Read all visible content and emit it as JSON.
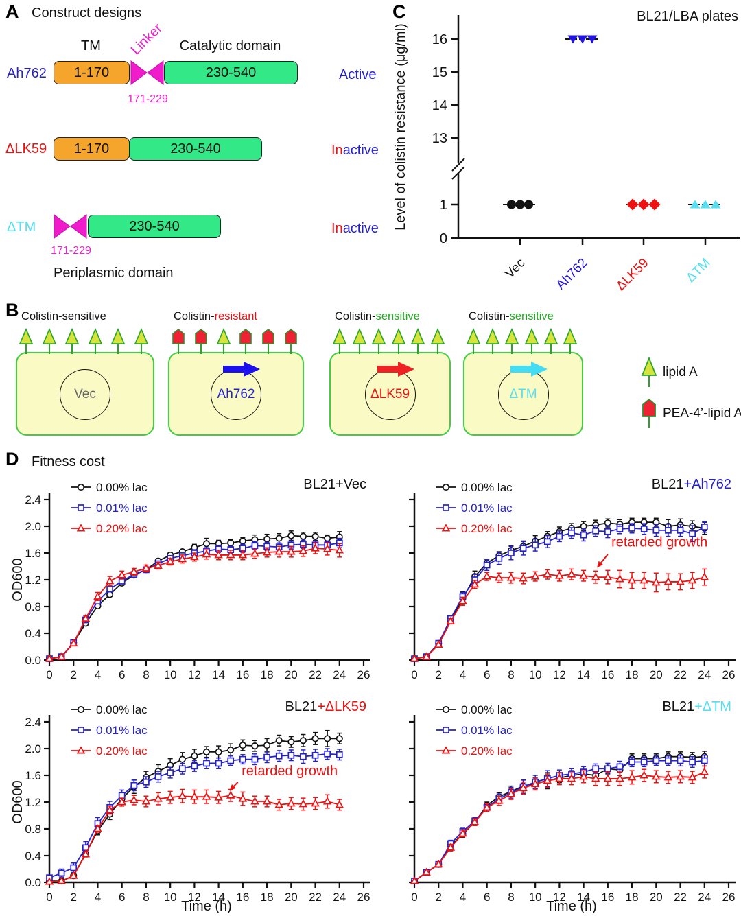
{
  "colors": {
    "black": "#111111",
    "blue": "#2522cc",
    "deep_blue": "#2114e0",
    "red": "#ee1111",
    "cyan": "#55dff0",
    "magenta": "#ee22cc",
    "orange": "#f5a42c",
    "green_box": "#33e887",
    "cell_fill": "#fafac5",
    "cell_stroke": "#44cc44",
    "lipidA_fill": "#d6e33c",
    "lipidA_stroke": "#2aa52a",
    "pea_fill": "#ee2233",
    "pea_stroke": "#2f8f2f",
    "gray": "#666666"
  },
  "panelA": {
    "label": "A",
    "title": "Construct designs",
    "headers": {
      "tm": "TM",
      "linker": "Linker",
      "catalytic": "Catalytic domain"
    },
    "rows": [
      {
        "name": "Ah762",
        "name_color": "#2522cc",
        "tm": "1-170",
        "has_linker": true,
        "linker_range": "171-229",
        "cat": "230-540",
        "status_parts": [
          {
            "t": "Active",
            "c": "#2522cc"
          }
        ]
      },
      {
        "name": "ΔLK59",
        "name_color": "#ee1111",
        "tm": "1-170",
        "has_linker": false,
        "linker_range": null,
        "cat": "230-540",
        "status_parts": [
          {
            "t": "In",
            "c": "#ee1111"
          },
          {
            "t": "active",
            "c": "#2522cc"
          }
        ]
      },
      {
        "name": "ΔTM",
        "name_color": "#55dff0",
        "tm": null,
        "has_linker": true,
        "linker_range": "171-229",
        "cat": "230-540",
        "status_parts": [
          {
            "t": "In",
            "c": "#ee1111"
          },
          {
            "t": "active",
            "c": "#2522cc"
          }
        ]
      }
    ],
    "footnote": "Periplasmic domain"
  },
  "panelB": {
    "label": "B",
    "cells": [
      {
        "header_prefix": "Colistin-",
        "header_suffix": "sensitive",
        "suffix_color": "#111111",
        "plasmid": "Vec",
        "plasmid_color": "#666666",
        "arrow_color": null,
        "surface": [
          "lipidA",
          "lipidA",
          "lipidA",
          "lipidA",
          "lipidA",
          "lipidA"
        ]
      },
      {
        "header_prefix": "Colistin-",
        "header_suffix": "resistant",
        "suffix_color": "#ee1111",
        "plasmid": "Ah762",
        "plasmid_color": "#2522cc",
        "arrow_color": "#1c11ee",
        "surface": [
          "pea",
          "pea",
          "lipidA",
          "pea",
          "pea",
          "pea"
        ]
      },
      {
        "header_prefix": "Colistin-",
        "header_suffix": "sensitive",
        "suffix_color": "#22aa22",
        "plasmid": "ΔLK59",
        "plasmid_color": "#ee1111",
        "arrow_color": "#ee2222",
        "surface": [
          "lipidA",
          "lipidA",
          "lipidA",
          "lipidA",
          "lipidA",
          "lipidA"
        ]
      },
      {
        "header_prefix": "Colistin-",
        "header_suffix": "sensitive",
        "suffix_color": "#22aa22",
        "plasmid": "ΔTM",
        "plasmid_color": "#55dff0",
        "arrow_color": "#44dcf2",
        "surface": [
          "lipidA",
          "lipidA",
          "lipidA",
          "lipidA",
          "lipidA",
          "lipidA"
        ]
      }
    ],
    "legend": [
      {
        "symbol": "lipidA",
        "label": "lipid A"
      },
      {
        "symbol": "pea",
        "label": "PEA-4’-lipid A"
      }
    ]
  },
  "panelC": {
    "label": "C"
  },
  "panelD": {
    "label": "D",
    "title": "Fitness cost",
    "axis": {
      "xlabel": "Time (h)",
      "ylabel": "OD600",
      "xlim": [
        0,
        26
      ],
      "ylim": [
        0,
        2.4
      ],
      "xticks": [
        0,
        2,
        4,
        6,
        8,
        10,
        12,
        14,
        16,
        18,
        20,
        22,
        24,
        26
      ],
      "yticks": [
        0.0,
        0.4,
        0.8,
        1.2,
        1.6,
        2.0,
        2.4
      ],
      "x": [
        0,
        1,
        2,
        3,
        4,
        5,
        6,
        7,
        8,
        9,
        10,
        11,
        12,
        13,
        14,
        15,
        16,
        17,
        18,
        19,
        20,
        21,
        22,
        23,
        24
      ]
    }
  },
  "chart_data": [
    {
      "id": "colistin",
      "type": "scatter",
      "title": "BL21/LBA plates",
      "ylabel": "Level of colistin resistance (μg/ml)",
      "yticks_upper": [
        16,
        15,
        14,
        13
      ],
      "yticks_lower": [
        1,
        0
      ],
      "axis_break": true,
      "groups": [
        {
          "label": "Vec",
          "color": "#111111",
          "marker": "circle",
          "points": [
            1,
            1,
            1
          ]
        },
        {
          "label": "Ah762",
          "color": "#2114e0",
          "marker": "triangle-down",
          "points": [
            16,
            16,
            16
          ]
        },
        {
          "label": "ΔLK59",
          "color": "#ee1111",
          "marker": "diamond",
          "points": [
            1,
            1,
            1
          ]
        },
        {
          "label": "ΔTM",
          "color": "#55dff0",
          "marker": "triangle-up",
          "points": [
            1,
            1,
            1
          ]
        }
      ]
    },
    {
      "id": "vec",
      "type": "line",
      "title_prefix": "BL21",
      "title_suffix": "+Vec",
      "suffix_color": "#111111",
      "show_ylabel": true,
      "show_ytick_labels": true,
      "show_xlabel": false,
      "annotation": null,
      "series": [
        {
          "name": "0.00% lac",
          "color": "#111111",
          "marker": "circle",
          "y": [
            0.02,
            0.05,
            0.26,
            0.55,
            0.81,
            0.98,
            1.15,
            1.27,
            1.35,
            1.48,
            1.57,
            1.62,
            1.68,
            1.74,
            1.74,
            1.75,
            1.78,
            1.8,
            1.81,
            1.82,
            1.86,
            1.85,
            1.85,
            1.82,
            1.84
          ],
          "err": [
            0.01,
            0.01,
            0.02,
            0.03,
            0.03,
            0.03,
            0.03,
            0.03,
            0.03,
            0.03,
            0.03,
            0.03,
            0.05,
            0.08,
            0.05,
            0.05,
            0.05,
            0.07,
            0.07,
            0.07,
            0.07,
            0.06,
            0.06,
            0.05,
            0.08
          ]
        },
        {
          "name": "0.01% lac",
          "color": "#2522cc",
          "marker": "square",
          "y": [
            0.02,
            0.05,
            0.26,
            0.6,
            0.88,
            1.06,
            1.18,
            1.28,
            1.35,
            1.44,
            1.52,
            1.56,
            1.6,
            1.63,
            1.66,
            1.65,
            1.67,
            1.71,
            1.7,
            1.69,
            1.72,
            1.73,
            1.72,
            1.72,
            1.75
          ],
          "err": [
            0.01,
            0.01,
            0.02,
            0.03,
            0.04,
            0.04,
            0.04,
            0.04,
            0.04,
            0.04,
            0.04,
            0.04,
            0.05,
            0.05,
            0.05,
            0.05,
            0.06,
            0.06,
            0.06,
            0.06,
            0.06,
            0.06,
            0.06,
            0.06,
            0.07
          ]
        },
        {
          "name": "0.20% lac",
          "color": "#ee1111",
          "marker": "triangle",
          "y": [
            0.02,
            0.05,
            0.25,
            0.62,
            0.95,
            1.18,
            1.27,
            1.32,
            1.37,
            1.41,
            1.47,
            1.51,
            1.54,
            1.58,
            1.57,
            1.57,
            1.57,
            1.59,
            1.61,
            1.62,
            1.62,
            1.63,
            1.67,
            1.66,
            1.64
          ],
          "err": [
            0.01,
            0.01,
            0.02,
            0.04,
            0.06,
            0.07,
            0.06,
            0.05,
            0.05,
            0.05,
            0.05,
            0.06,
            0.06,
            0.07,
            0.07,
            0.07,
            0.07,
            0.07,
            0.07,
            0.08,
            0.08,
            0.08,
            0.08,
            0.09,
            0.1
          ]
        }
      ]
    },
    {
      "id": "ah762",
      "type": "line",
      "title_prefix": "BL21",
      "title_suffix": "+Ah762",
      "suffix_color": "#2522cc",
      "show_ylabel": false,
      "show_ytick_labels": false,
      "show_xlabel": false,
      "annotation": {
        "text": "retarded growth",
        "color": "#ee1111",
        "tx": 16.3,
        "ty": 1.7,
        "arrow": [
          16.0,
          1.58,
          15.1,
          1.38
        ]
      },
      "series": [
        {
          "name": "0.00% lac",
          "color": "#111111",
          "marker": "circle",
          "y": [
            0.02,
            0.05,
            0.25,
            0.6,
            0.92,
            1.25,
            1.45,
            1.56,
            1.64,
            1.7,
            1.78,
            1.85,
            1.92,
            1.97,
            2.0,
            2.02,
            2.05,
            2.03,
            2.06,
            2.06,
            2.06,
            2.0,
            2.02,
            2.0,
            1.97
          ],
          "err": [
            0.01,
            0.01,
            0.02,
            0.04,
            0.1,
            0.08,
            0.06,
            0.06,
            0.07,
            0.08,
            0.08,
            0.07,
            0.07,
            0.07,
            0.07,
            0.07,
            0.06,
            0.07,
            0.06,
            0.06,
            0.06,
            0.1,
            0.09,
            0.08,
            0.09
          ]
        },
        {
          "name": "0.01% lac",
          "color": "#2522cc",
          "marker": "square",
          "y": [
            0.02,
            0.05,
            0.25,
            0.62,
            0.95,
            1.2,
            1.42,
            1.52,
            1.6,
            1.67,
            1.72,
            1.77,
            1.85,
            1.9,
            1.87,
            1.93,
            1.92,
            1.96,
            1.97,
            1.96,
            1.94,
            1.94,
            1.94,
            1.89,
            1.99
          ],
          "err": [
            0.01,
            0.01,
            0.02,
            0.04,
            0.06,
            0.08,
            0.08,
            0.09,
            0.1,
            0.1,
            0.09,
            0.09,
            0.08,
            0.08,
            0.09,
            0.08,
            0.09,
            0.07,
            0.07,
            0.08,
            0.09,
            0.09,
            0.09,
            0.12,
            0.08
          ]
        },
        {
          "name": "0.20% lac",
          "color": "#ee1111",
          "marker": "triangle",
          "y": [
            0.02,
            0.05,
            0.23,
            0.58,
            0.88,
            1.13,
            1.25,
            1.23,
            1.23,
            1.22,
            1.25,
            1.28,
            1.26,
            1.28,
            1.26,
            1.24,
            1.24,
            1.21,
            1.19,
            1.19,
            1.16,
            1.17,
            1.17,
            1.19,
            1.24
          ],
          "err": [
            0.01,
            0.01,
            0.02,
            0.04,
            0.06,
            0.06,
            0.06,
            0.07,
            0.08,
            0.08,
            0.07,
            0.07,
            0.08,
            0.08,
            0.08,
            0.09,
            0.1,
            0.13,
            0.12,
            0.12,
            0.14,
            0.12,
            0.12,
            0.12,
            0.12
          ]
        }
      ]
    },
    {
      "id": "dlk59",
      "type": "line",
      "title_prefix": "BL21",
      "title_suffix": "+ΔLK59",
      "suffix_color": "#ee1111",
      "show_ylabel": true,
      "show_ytick_labels": true,
      "show_xlabel": true,
      "annotation": {
        "text": "retarded growth",
        "color": "#ee1111",
        "tx": 15.9,
        "ty": 1.6,
        "arrow": [
          15.6,
          1.5,
          14.9,
          1.37
        ]
      },
      "series": [
        {
          "name": "0.00% lac",
          "color": "#111111",
          "marker": "circle",
          "y": [
            0.02,
            0.02,
            0.1,
            0.43,
            0.77,
            1.02,
            1.25,
            1.43,
            1.57,
            1.66,
            1.75,
            1.84,
            1.89,
            1.95,
            1.95,
            1.98,
            2.05,
            2.04,
            2.05,
            2.12,
            2.1,
            2.12,
            2.15,
            2.15,
            2.15
          ],
          "err": [
            0.01,
            0.01,
            0.02,
            0.04,
            0.06,
            0.08,
            0.09,
            0.1,
            0.09,
            0.1,
            0.1,
            0.1,
            0.1,
            0.08,
            0.09,
            0.09,
            0.08,
            0.08,
            0.1,
            0.08,
            0.08,
            0.09,
            0.09,
            0.12,
            0.08
          ]
        },
        {
          "name": "0.01% lac",
          "color": "#2522cc",
          "marker": "square",
          "y": [
            0.07,
            0.14,
            0.22,
            0.52,
            0.88,
            1.12,
            1.3,
            1.45,
            1.5,
            1.58,
            1.64,
            1.7,
            1.74,
            1.78,
            1.78,
            1.82,
            1.84,
            1.84,
            1.87,
            1.89,
            1.9,
            1.88,
            1.9,
            1.92,
            1.91
          ],
          "err": [
            0.04,
            0.06,
            0.07,
            0.09,
            0.09,
            0.09,
            0.08,
            0.08,
            0.08,
            0.08,
            0.08,
            0.08,
            0.08,
            0.08,
            0.08,
            0.07,
            0.07,
            0.08,
            0.08,
            0.08,
            0.08,
            0.1,
            0.09,
            0.08,
            0.08
          ]
        },
        {
          "name": "0.20% lac",
          "color": "#ee1111",
          "marker": "triangle",
          "y": [
            0.01,
            0.02,
            0.1,
            0.42,
            0.8,
            1.08,
            1.2,
            1.23,
            1.21,
            1.25,
            1.27,
            1.29,
            1.28,
            1.28,
            1.27,
            1.3,
            1.25,
            1.21,
            1.21,
            1.16,
            1.18,
            1.17,
            1.18,
            1.21,
            1.16
          ],
          "err": [
            0.01,
            0.01,
            0.02,
            0.04,
            0.05,
            0.06,
            0.06,
            0.07,
            0.08,
            0.09,
            0.09,
            0.1,
            0.1,
            0.1,
            0.09,
            0.09,
            0.1,
            0.08,
            0.08,
            0.08,
            0.09,
            0.09,
            0.09,
            0.1,
            0.08
          ]
        }
      ]
    },
    {
      "id": "dtm",
      "type": "line",
      "title_prefix": "BL21",
      "title_suffix": "+ΔTM",
      "suffix_color": "#55dff0",
      "show_ylabel": false,
      "show_ytick_labels": false,
      "show_xlabel": true,
      "annotation": null,
      "series": [
        {
          "name": "0.00% lac",
          "color": "#111111",
          "marker": "circle",
          "y": [
            0.02,
            0.15,
            0.27,
            0.55,
            0.72,
            0.9,
            1.15,
            1.28,
            1.36,
            1.44,
            1.48,
            1.52,
            1.56,
            1.6,
            1.62,
            1.6,
            1.7,
            1.68,
            1.85,
            1.85,
            1.85,
            1.88,
            1.88,
            1.87,
            1.88
          ],
          "err": [
            0.01,
            0.02,
            0.03,
            0.04,
            0.05,
            0.05,
            0.05,
            0.06,
            0.08,
            0.09,
            0.08,
            0.12,
            0.07,
            0.07,
            0.07,
            0.08,
            0.07,
            0.08,
            0.07,
            0.07,
            0.07,
            0.07,
            0.07,
            0.07,
            0.08
          ]
        },
        {
          "name": "0.01% lac",
          "color": "#2522cc",
          "marker": "square",
          "y": [
            0.02,
            0.15,
            0.27,
            0.58,
            0.76,
            0.92,
            1.12,
            1.25,
            1.34,
            1.43,
            1.5,
            1.55,
            1.6,
            1.62,
            1.65,
            1.7,
            1.7,
            1.73,
            1.8,
            1.8,
            1.82,
            1.82,
            1.82,
            1.8,
            1.82
          ],
          "err": [
            0.01,
            0.02,
            0.03,
            0.05,
            0.05,
            0.05,
            0.06,
            0.07,
            0.08,
            0.1,
            0.1,
            0.12,
            0.08,
            0.08,
            0.08,
            0.07,
            0.08,
            0.08,
            0.07,
            0.07,
            0.07,
            0.07,
            0.08,
            0.08,
            0.08
          ]
        },
        {
          "name": "0.20% lac",
          "color": "#ee1111",
          "marker": "triangle",
          "y": [
            0.02,
            0.15,
            0.27,
            0.52,
            0.73,
            0.9,
            1.12,
            1.22,
            1.32,
            1.41,
            1.47,
            1.52,
            1.55,
            1.55,
            1.58,
            1.55,
            1.55,
            1.55,
            1.57,
            1.6,
            1.58,
            1.57,
            1.58,
            1.57,
            1.65
          ],
          "err": [
            0.01,
            0.02,
            0.03,
            0.05,
            0.05,
            0.05,
            0.06,
            0.07,
            0.08,
            0.09,
            0.09,
            0.1,
            0.09,
            0.09,
            0.09,
            0.1,
            0.1,
            0.1,
            0.1,
            0.09,
            0.09,
            0.09,
            0.09,
            0.09,
            0.09
          ]
        }
      ]
    }
  ]
}
